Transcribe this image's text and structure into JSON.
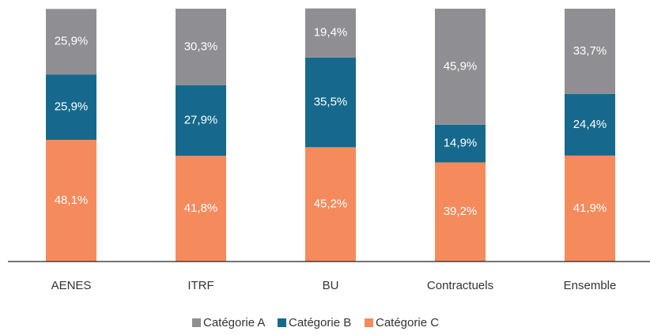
{
  "chart_data": {
    "type": "stacked_bar",
    "categories": [
      "AENES",
      "ITRF",
      "BU",
      "Contractuels",
      "Ensemble"
    ],
    "series": [
      {
        "name": "Catégorie A",
        "color": "#8f8f93",
        "values": [
          25.9,
          30.3,
          19.4,
          45.9,
          33.7
        ],
        "value_labels": [
          "25,9%",
          "30,3%",
          "19,4%",
          "45,9%",
          "33,7%"
        ]
      },
      {
        "name": "Catégorie B",
        "color": "#16698c",
        "values": [
          25.9,
          27.9,
          35.5,
          14.9,
          24.4
        ],
        "value_labels": [
          "25,9%",
          "27,9%",
          "35,5%",
          "14,9%",
          "24,4%"
        ]
      },
      {
        "name": "Catégorie C",
        "color": "#f58b5d",
        "values": [
          48.1,
          41.8,
          45.2,
          39.2,
          41.9
        ],
        "value_labels": [
          "48,1%",
          "41,8%",
          "45,2%",
          "39,2%",
          "41,9%"
        ]
      }
    ],
    "ylim": [
      0,
      100
    ],
    "legend": "bottom"
  }
}
